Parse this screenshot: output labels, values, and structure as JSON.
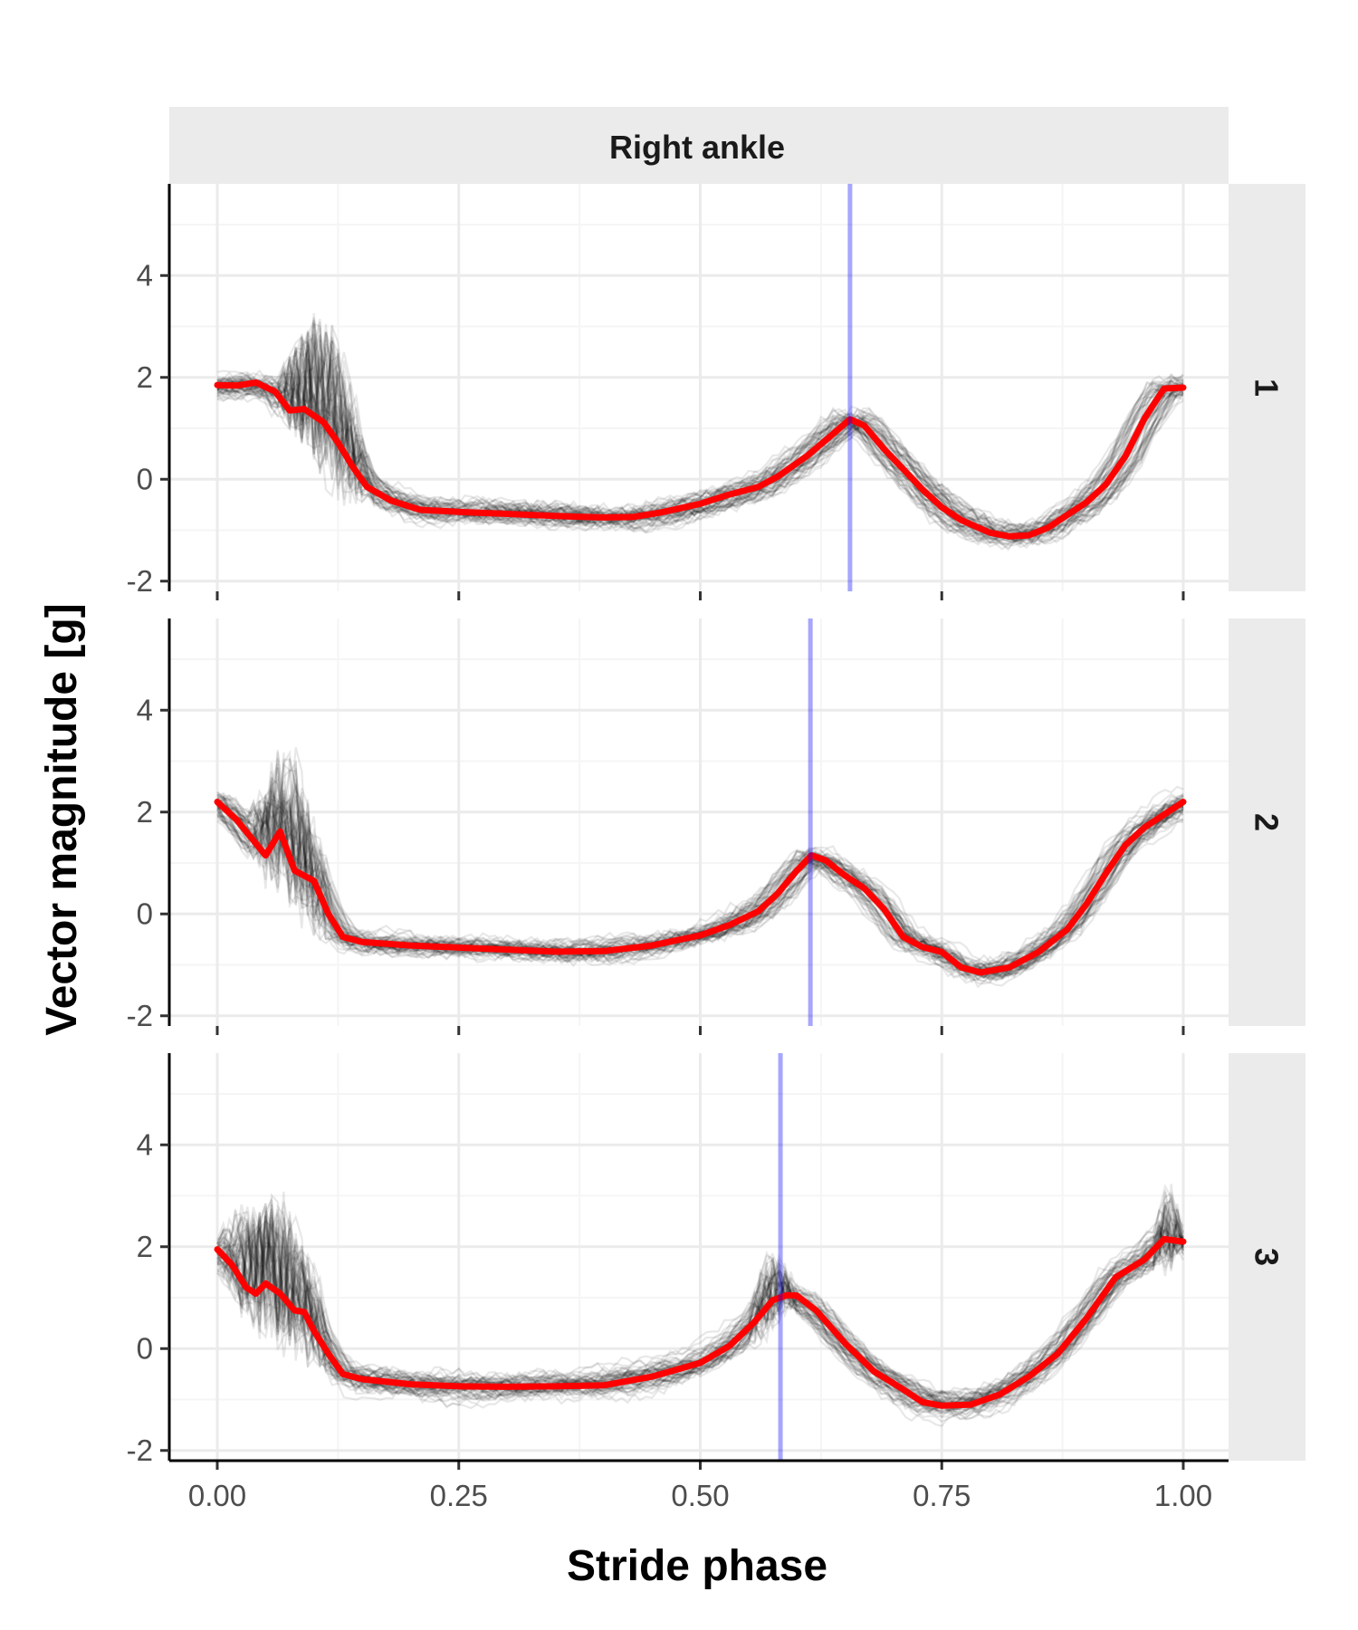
{
  "chart_data": {
    "type": "line",
    "facet_column_label": "Right ankle",
    "xlabel": "Stride phase",
    "ylabel": "Vector magnitude [g]",
    "xlim": [
      0,
      1
    ],
    "ylim": [
      -2.2,
      5.8
    ],
    "x_ticks": [
      "0.00",
      "0.25",
      "0.50",
      "0.75",
      "1.00"
    ],
    "y_ticks": [
      "-2",
      "0",
      "2",
      "4"
    ],
    "grid": true,
    "colors": {
      "mean": "#ff0000",
      "strides": "#000000",
      "marker": "#0000ff",
      "strip": "#ebebeb"
    },
    "panels": [
      {
        "label": "1",
        "marker_x": 0.655,
        "mean": [
          [
            0.0,
            1.85
          ],
          [
            0.02,
            1.84
          ],
          [
            0.04,
            1.9
          ],
          [
            0.06,
            1.72
          ],
          [
            0.075,
            1.35
          ],
          [
            0.09,
            1.38
          ],
          [
            0.11,
            1.12
          ],
          [
            0.125,
            0.72
          ],
          [
            0.14,
            0.25
          ],
          [
            0.155,
            -0.15
          ],
          [
            0.18,
            -0.42
          ],
          [
            0.21,
            -0.6
          ],
          [
            0.25,
            -0.64
          ],
          [
            0.3,
            -0.68
          ],
          [
            0.35,
            -0.72
          ],
          [
            0.4,
            -0.75
          ],
          [
            0.43,
            -0.74
          ],
          [
            0.46,
            -0.65
          ],
          [
            0.5,
            -0.48
          ],
          [
            0.53,
            -0.3
          ],
          [
            0.56,
            -0.15
          ],
          [
            0.58,
            0.05
          ],
          [
            0.61,
            0.45
          ],
          [
            0.635,
            0.85
          ],
          [
            0.655,
            1.18
          ],
          [
            0.67,
            1.05
          ],
          [
            0.69,
            0.6
          ],
          [
            0.71,
            0.2
          ],
          [
            0.73,
            -0.2
          ],
          [
            0.75,
            -0.55
          ],
          [
            0.77,
            -0.8
          ],
          [
            0.8,
            -1.05
          ],
          [
            0.82,
            -1.12
          ],
          [
            0.84,
            -1.1
          ],
          [
            0.86,
            -0.95
          ],
          [
            0.88,
            -0.7
          ],
          [
            0.9,
            -0.45
          ],
          [
            0.92,
            -0.1
          ],
          [
            0.94,
            0.45
          ],
          [
            0.96,
            1.2
          ],
          [
            0.98,
            1.78
          ],
          [
            1.0,
            1.8
          ]
        ],
        "variation": 0.35,
        "spikes": [
          [
            0.06,
            0.16,
            2.8,
            1
          ]
        ]
      },
      {
        "label": "2",
        "marker_x": 0.614,
        "mean": [
          [
            0.0,
            2.2
          ],
          [
            0.02,
            1.85
          ],
          [
            0.035,
            1.5
          ],
          [
            0.05,
            1.15
          ],
          [
            0.065,
            1.62
          ],
          [
            0.08,
            0.85
          ],
          [
            0.1,
            0.65
          ],
          [
            0.115,
            0.0
          ],
          [
            0.13,
            -0.45
          ],
          [
            0.15,
            -0.55
          ],
          [
            0.2,
            -0.62
          ],
          [
            0.25,
            -0.66
          ],
          [
            0.3,
            -0.7
          ],
          [
            0.35,
            -0.74
          ],
          [
            0.4,
            -0.73
          ],
          [
            0.45,
            -0.62
          ],
          [
            0.5,
            -0.42
          ],
          [
            0.53,
            -0.22
          ],
          [
            0.56,
            0.05
          ],
          [
            0.58,
            0.4
          ],
          [
            0.6,
            0.85
          ],
          [
            0.615,
            1.15
          ],
          [
            0.63,
            1.05
          ],
          [
            0.65,
            0.75
          ],
          [
            0.67,
            0.5
          ],
          [
            0.69,
            0.1
          ],
          [
            0.71,
            -0.45
          ],
          [
            0.73,
            -0.65
          ],
          [
            0.75,
            -0.75
          ],
          [
            0.77,
            -1.05
          ],
          [
            0.79,
            -1.15
          ],
          [
            0.82,
            -1.05
          ],
          [
            0.85,
            -0.75
          ],
          [
            0.88,
            -0.3
          ],
          [
            0.9,
            0.2
          ],
          [
            0.92,
            0.8
          ],
          [
            0.94,
            1.35
          ],
          [
            0.96,
            1.7
          ],
          [
            0.98,
            1.95
          ],
          [
            1.0,
            2.2
          ]
        ],
        "variation": 0.35,
        "spikes": [
          [
            0.03,
            0.12,
            2.5,
            1
          ]
        ]
      },
      {
        "label": "3",
        "marker_x": 0.583,
        "mean": [
          [
            0.0,
            1.95
          ],
          [
            0.015,
            1.65
          ],
          [
            0.03,
            1.2
          ],
          [
            0.04,
            1.08
          ],
          [
            0.05,
            1.28
          ],
          [
            0.065,
            1.08
          ],
          [
            0.08,
            0.75
          ],
          [
            0.09,
            0.72
          ],
          [
            0.1,
            0.35
          ],
          [
            0.115,
            -0.1
          ],
          [
            0.13,
            -0.5
          ],
          [
            0.15,
            -0.6
          ],
          [
            0.2,
            -0.7
          ],
          [
            0.25,
            -0.74
          ],
          [
            0.3,
            -0.75
          ],
          [
            0.35,
            -0.74
          ],
          [
            0.4,
            -0.72
          ],
          [
            0.45,
            -0.55
          ],
          [
            0.5,
            -0.28
          ],
          [
            0.53,
            0.05
          ],
          [
            0.555,
            0.5
          ],
          [
            0.575,
            0.95
          ],
          [
            0.59,
            1.05
          ],
          [
            0.6,
            1.04
          ],
          [
            0.62,
            0.75
          ],
          [
            0.65,
            0.1
          ],
          [
            0.68,
            -0.45
          ],
          [
            0.71,
            -0.8
          ],
          [
            0.73,
            -1.05
          ],
          [
            0.75,
            -1.12
          ],
          [
            0.78,
            -1.1
          ],
          [
            0.81,
            -0.9
          ],
          [
            0.84,
            -0.55
          ],
          [
            0.87,
            -0.1
          ],
          [
            0.9,
            0.6
          ],
          [
            0.93,
            1.4
          ],
          [
            0.96,
            1.75
          ],
          [
            0.98,
            2.15
          ],
          [
            1.0,
            2.1
          ]
        ],
        "variation": 0.45,
        "spikes": [
          [
            0.0,
            0.12,
            2.6,
            1
          ],
          [
            0.55,
            0.6,
            2.0,
            0.6
          ],
          [
            0.97,
            1.0,
            2.5,
            0.6
          ]
        ]
      }
    ]
  }
}
